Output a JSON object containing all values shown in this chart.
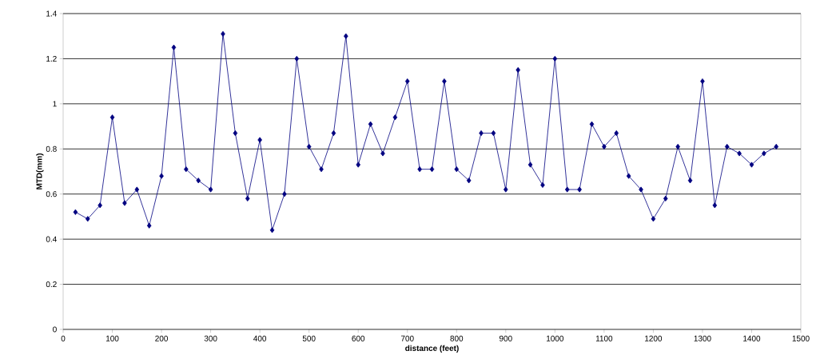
{
  "chart_data": {
    "type": "line",
    "xlabel": "distance (feet)",
    "ylabel": "MTD(mm)",
    "x": [
      25,
      50,
      75,
      100,
      125,
      150,
      175,
      200,
      225,
      250,
      275,
      300,
      325,
      350,
      375,
      400,
      425,
      450,
      475,
      500,
      525,
      550,
      575,
      600,
      625,
      650,
      675,
      700,
      725,
      750,
      775,
      800,
      825,
      850,
      875,
      900,
      925,
      950,
      975,
      1000,
      1025,
      1050,
      1075,
      1100,
      1125,
      1150,
      1175,
      1200,
      1225,
      1250,
      1275,
      1300,
      1325,
      1350,
      1375,
      1400,
      1425,
      1450
    ],
    "values": [
      0.52,
      0.49,
      0.55,
      0.94,
      0.56,
      0.62,
      0.46,
      0.68,
      1.25,
      0.71,
      0.66,
      0.62,
      1.31,
      0.87,
      0.58,
      0.84,
      0.44,
      0.6,
      1.2,
      0.81,
      0.71,
      0.87,
      1.3,
      0.73,
      0.91,
      0.78,
      0.94,
      1.1,
      0.71,
      0.71,
      1.1,
      0.71,
      0.66,
      0.87,
      0.87,
      0.62,
      1.15,
      0.73,
      0.64,
      1.2,
      0.62,
      0.62,
      0.91,
      0.81,
      0.87,
      0.68,
      0.62,
      0.49,
      0.58,
      0.81,
      0.66,
      1.1,
      0.55,
      0.81,
      0.78,
      0.73,
      0.78,
      0.81
    ],
    "color": "#000080",
    "marker": "diamond",
    "grid": "y",
    "xlim": [
      0,
      1500
    ],
    "xticks": [
      0,
      100,
      200,
      300,
      400,
      500,
      600,
      700,
      800,
      900,
      1000,
      1100,
      1200,
      1300,
      1400,
      1500
    ],
    "ylim": [
      0,
      1.4
    ],
    "yticks": [
      0,
      0.2,
      0.4,
      0.6,
      0.8,
      1,
      1.2,
      1.4
    ]
  }
}
